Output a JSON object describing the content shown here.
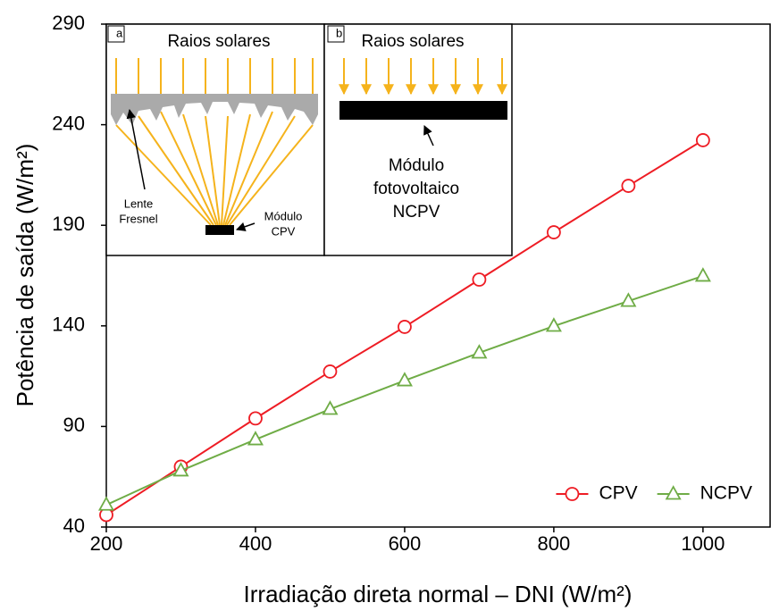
{
  "chart_data": {
    "type": "line",
    "x_label": "Irradiação direta normal – DNI (W/m²)",
    "y_label": "Potência de saída (W/m²)",
    "x": [
      200,
      300,
      400,
      500,
      600,
      700,
      800,
      900,
      1000
    ],
    "series": [
      {
        "name": "CPV",
        "color": "#ee1c24",
        "marker": "circle",
        "values": [
          46,
          70,
          94,
          117.3,
          139.5,
          163,
          186.5,
          209.6,
          232.3
        ]
      },
      {
        "name": "NCPV",
        "color": "#6fac46",
        "marker": "triangle",
        "values": [
          51,
          68,
          83.5,
          98.6,
          112.8,
          126.6,
          139.9,
          152.3,
          164.8
        ]
      }
    ],
    "xlim": [
      200,
      1090
    ],
    "ylim": [
      40,
      290
    ],
    "xticks": [
      200,
      400,
      600,
      800,
      1000
    ],
    "yticks": [
      40,
      90,
      140,
      190,
      240,
      290
    ],
    "legend": "lower right",
    "annotations": [
      "a",
      "Raios solares",
      "Lente",
      "Fresnel",
      "Módulo",
      "CPV",
      "b",
      "Raios solares",
      "Módulo",
      "fotovoltaico",
      "NCPV"
    ]
  }
}
